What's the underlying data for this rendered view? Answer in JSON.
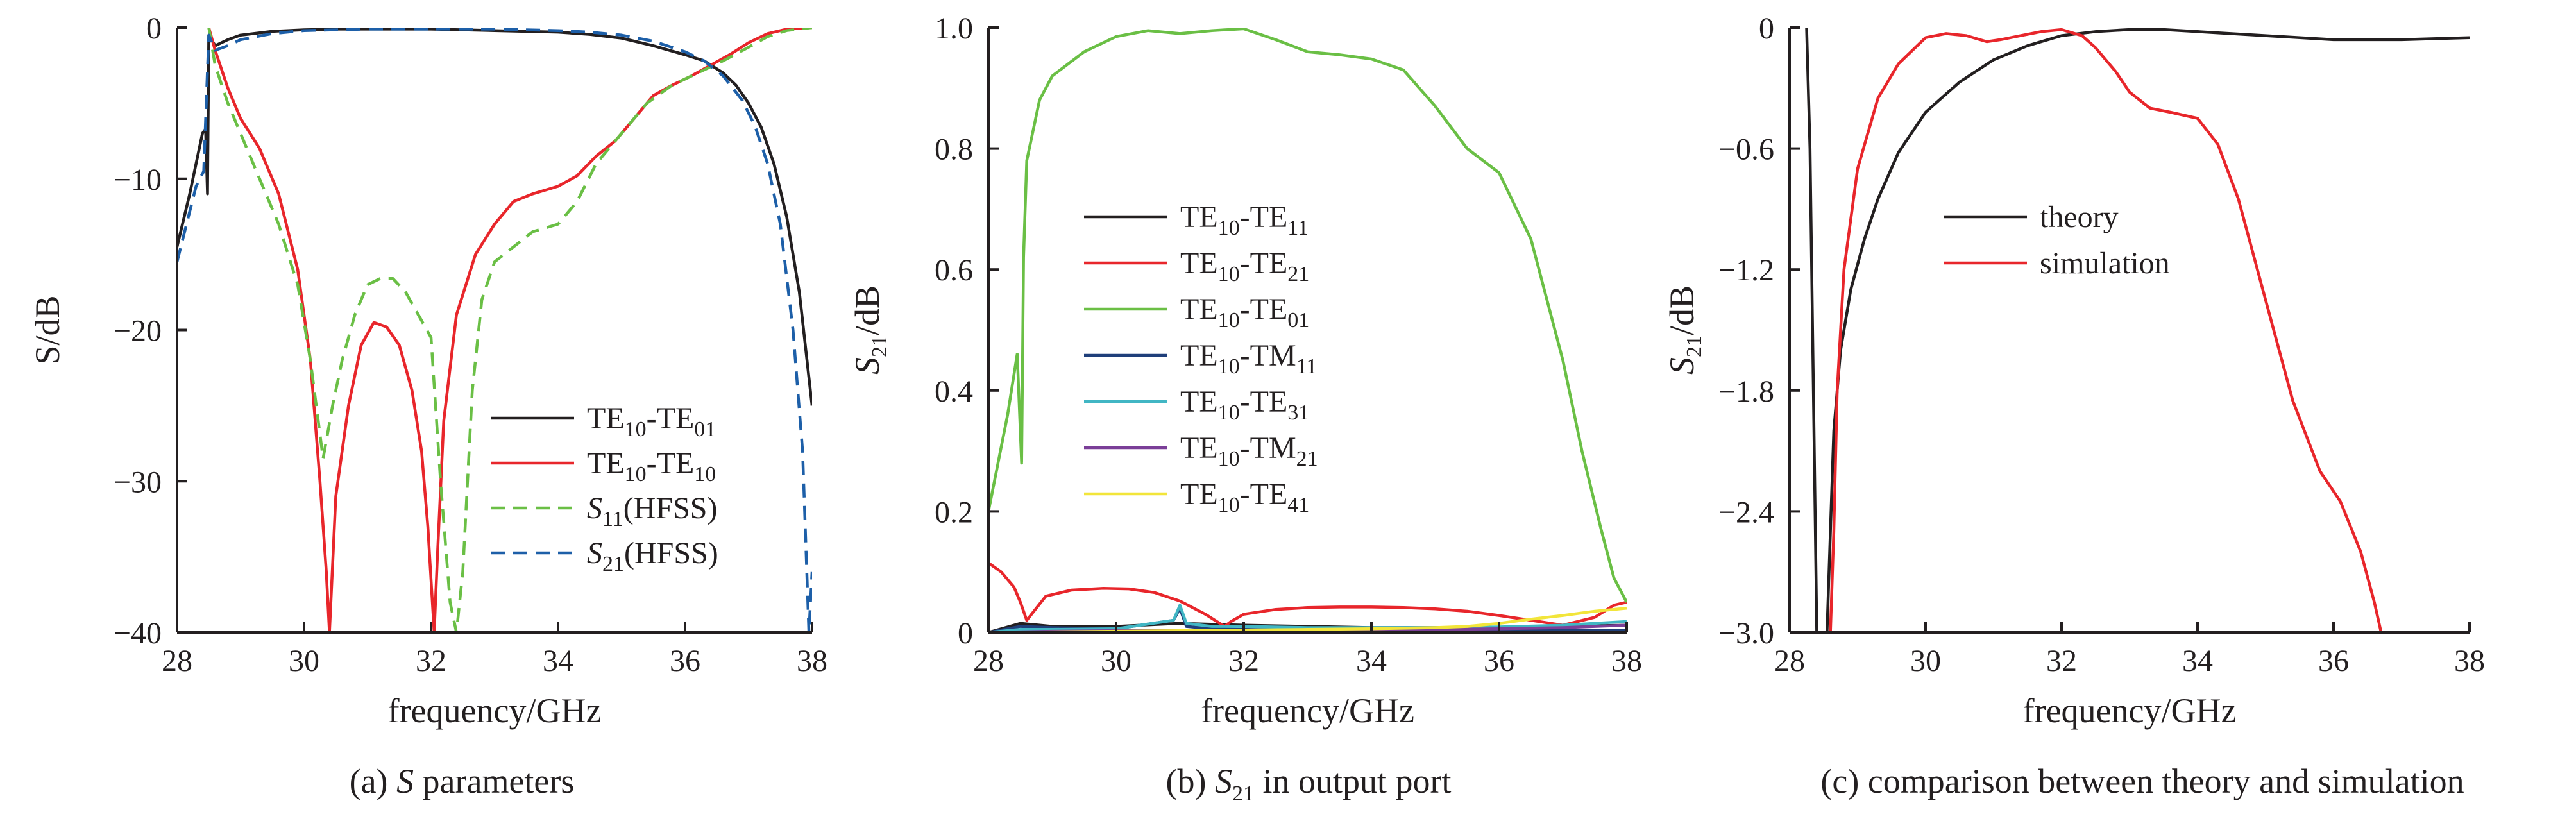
{
  "chart_data": [
    {
      "type": "line",
      "caption": "(a) S parameters",
      "caption_parts": {
        "prefix": "(a) ",
        "italic": "S",
        "suffix": " parameters"
      },
      "xlabel": "frequency/GHz",
      "ylabel": "S/dB",
      "xlim": [
        28,
        38
      ],
      "ylim": [
        -40,
        0
      ],
      "xticks": [
        28,
        30,
        32,
        34,
        36,
        38
      ],
      "yticks": [
        0,
        -10,
        -20,
        -30,
        -40
      ],
      "ytick_labels": [
        "0",
        "−10",
        "−20",
        "−30",
        "−40"
      ],
      "grid": false,
      "legend_position": "bottom-right",
      "series": [
        {
          "name": "TE10-TE01",
          "label": {
            "base": "TE",
            "sub": "10",
            "mid": "-TE",
            "sub2": "01"
          },
          "color": "#231f20",
          "style": "solid",
          "x": [
            28.0,
            28.2,
            28.4,
            28.45,
            28.48,
            28.5,
            28.6,
            28.8,
            29.0,
            29.5,
            30.0,
            30.5,
            31.0,
            32.0,
            33.0,
            34.0,
            34.5,
            35.0,
            35.5,
            36.0,
            36.3,
            36.6,
            36.8,
            37.0,
            37.2,
            37.4,
            37.6,
            37.8,
            38.0
          ],
          "y": [
            -14.5,
            -11,
            -7,
            -6.7,
            -11,
            -0.5,
            -1.2,
            -0.8,
            -0.5,
            -0.25,
            -0.15,
            -0.1,
            -0.1,
            -0.1,
            -0.2,
            -0.3,
            -0.45,
            -0.7,
            -1.2,
            -1.8,
            -2.2,
            -3.0,
            -3.8,
            -5.0,
            -6.6,
            -9.0,
            -12.5,
            -17.5,
            -25.0
          ]
        },
        {
          "name": "TE10-TE10",
          "label": {
            "base": "TE",
            "sub": "10",
            "mid": "-TE",
            "sub2": "10"
          },
          "color": "#e8262b",
          "style": "solid",
          "x": [
            28.5,
            28.6,
            28.8,
            29.0,
            29.3,
            29.6,
            29.9,
            30.1,
            30.25,
            30.35,
            30.4,
            30.5,
            30.7,
            30.9,
            31.1,
            31.3,
            31.5,
            31.7,
            31.85,
            31.95,
            32.05,
            32.1,
            32.2,
            32.4,
            32.7,
            33.0,
            33.3,
            33.6,
            34.0,
            34.3,
            34.6,
            34.9,
            35.2,
            35.5,
            35.8,
            36.1,
            36.4,
            36.7,
            37.0,
            37.3,
            37.6,
            38.0
          ],
          "y": [
            0,
            -1.5,
            -4,
            -6,
            -8,
            -11,
            -16,
            -22,
            -30,
            -36,
            -40,
            -31,
            -25,
            -21,
            -19.5,
            -19.8,
            -21,
            -24,
            -28,
            -33,
            -40,
            -35,
            -26,
            -19,
            -15,
            -13,
            -11.5,
            -11,
            -10.5,
            -9.8,
            -8.5,
            -7.5,
            -6,
            -4.5,
            -3.8,
            -3.2,
            -2.5,
            -1.8,
            -1.0,
            -0.4,
            -0.1,
            0
          ]
        },
        {
          "name": "S11(HFSS)",
          "label": {
            "italic": "S",
            "sub": "11",
            "rest": "(HFSS)"
          },
          "color": "#6abf45",
          "style": "dashed",
          "x": [
            28.5,
            28.6,
            28.8,
            29.0,
            29.3,
            29.6,
            29.9,
            30.1,
            30.3,
            30.45,
            30.6,
            30.8,
            31.0,
            31.2,
            31.4,
            31.6,
            31.8,
            32.0,
            32.15,
            32.3,
            32.4,
            32.5,
            32.65,
            32.8,
            33.0,
            33.3,
            33.6,
            34.0,
            34.3,
            34.6,
            35.0,
            35.4,
            35.8,
            36.2,
            36.6,
            37.0,
            37.3,
            37.6,
            38.0
          ],
          "y": [
            0,
            -2.5,
            -5,
            -7,
            -10,
            -13,
            -17,
            -22,
            -28.5,
            -25,
            -22,
            -19,
            -17,
            -16.6,
            -16.6,
            -17.5,
            -19,
            -20.5,
            -30,
            -38,
            -40,
            -36,
            -24,
            -18,
            -15.5,
            -14.5,
            -13.5,
            -13,
            -11.5,
            -9,
            -7,
            -5,
            -3.8,
            -3.0,
            -2.2,
            -1.3,
            -0.6,
            -0.2,
            0
          ]
        },
        {
          "name": "S21(HFSS)",
          "label": {
            "italic": "S",
            "sub": "21",
            "rest": "(HFSS)"
          },
          "color": "#1d5fa8",
          "style": "dashed",
          "x": [
            28.0,
            28.15,
            28.3,
            28.42,
            28.5,
            28.6,
            28.8,
            29.0,
            29.5,
            30.0,
            31.0,
            32.0,
            33.0,
            34.0,
            34.5,
            35.0,
            35.5,
            36.0,
            36.3,
            36.6,
            36.9,
            37.1,
            37.3,
            37.5,
            37.7,
            37.85,
            37.95,
            38.0
          ],
          "y": [
            -15.5,
            -13,
            -10.5,
            -9.5,
            -0.5,
            -1.5,
            -1.2,
            -0.8,
            -0.4,
            -0.2,
            -0.1,
            -0.1,
            -0.1,
            -0.2,
            -0.3,
            -0.5,
            -0.9,
            -1.6,
            -2.2,
            -3.2,
            -4.8,
            -6.5,
            -9,
            -13,
            -20,
            -28,
            -40,
            -36
          ]
        }
      ]
    },
    {
      "type": "line",
      "caption": "(b) S21 in output port",
      "caption_parts": {
        "prefix": "(b) ",
        "italic": "S",
        "sub": "21",
        "suffix": " in output port"
      },
      "xlabel": "frequency/GHz",
      "ylabel": "S21/dB",
      "xlim": [
        28,
        38
      ],
      "ylim": [
        0,
        1.0
      ],
      "xticks": [
        28,
        30,
        32,
        34,
        36,
        38
      ],
      "yticks": [
        0,
        0.2,
        0.4,
        0.6,
        0.8,
        1.0
      ],
      "ytick_labels": [
        "0",
        "0.2",
        "0.4",
        "0.6",
        "0.8",
        "1.0"
      ],
      "grid": false,
      "legend_position": "center-left",
      "series": [
        {
          "name": "TE10-TE11",
          "label": {
            "base": "TE",
            "sub": "10",
            "mid": "-TE",
            "sub2": "11"
          },
          "color": "#231f20",
          "style": "solid",
          "x": [
            28.0,
            28.5,
            29.0,
            30.0,
            31.0,
            32.0,
            33.0,
            34.0,
            35.0,
            36.0,
            37.0,
            38.0
          ],
          "y": [
            0,
            0.015,
            0.01,
            0.01,
            0.015,
            0.012,
            0.01,
            0.008,
            0.008,
            0.008,
            0.01,
            0.012
          ]
        },
        {
          "name": "TE10-TE21",
          "label": {
            "base": "TE",
            "sub": "10",
            "mid": "-TE",
            "sub2": "21"
          },
          "color": "#e8262b",
          "style": "solid",
          "x": [
            28.0,
            28.2,
            28.4,
            28.5,
            28.6,
            28.9,
            29.3,
            29.8,
            30.2,
            30.6,
            31.0,
            31.4,
            31.7,
            31.8,
            32.0,
            32.5,
            33.0,
            33.5,
            34.0,
            34.5,
            35.0,
            35.5,
            36.0,
            36.5,
            37.0,
            37.5,
            37.8,
            38.0
          ],
          "y": [
            0.115,
            0.1,
            0.075,
            0.05,
            0.02,
            0.06,
            0.07,
            0.073,
            0.072,
            0.066,
            0.052,
            0.03,
            0.01,
            0.018,
            0.03,
            0.038,
            0.041,
            0.042,
            0.042,
            0.041,
            0.039,
            0.035,
            0.028,
            0.02,
            0.012,
            0.025,
            0.045,
            0.05
          ]
        },
        {
          "name": "TE10-TE01",
          "label": {
            "base": "TE",
            "sub": "10",
            "mid": "-TE",
            "sub2": "01"
          },
          "color": "#6abf45",
          "style": "solid",
          "x": [
            28.0,
            28.15,
            28.3,
            28.45,
            28.52,
            28.55,
            28.6,
            28.8,
            29.0,
            29.5,
            30.0,
            30.5,
            31.0,
            31.5,
            32.0,
            32.5,
            33.0,
            33.5,
            34.0,
            34.5,
            35.0,
            35.5,
            36.0,
            36.5,
            37.0,
            37.3,
            37.6,
            37.8,
            38.0
          ],
          "y": [
            0.2,
            0.28,
            0.36,
            0.46,
            0.28,
            0.62,
            0.78,
            0.88,
            0.92,
            0.96,
            0.985,
            0.995,
            0.99,
            0.995,
            0.998,
            0.98,
            0.96,
            0.955,
            0.948,
            0.93,
            0.87,
            0.8,
            0.76,
            0.65,
            0.45,
            0.3,
            0.17,
            0.09,
            0.05
          ]
        },
        {
          "name": "TE10-TM11",
          "label": {
            "base": "TE",
            "sub": "10",
            "mid": "-TM",
            "sub2": "11"
          },
          "color": "#1f3f7a",
          "style": "solid",
          "x": [
            28.0,
            28.5,
            29.0,
            30.0,
            30.9,
            31.0,
            31.1,
            31.5,
            32.0,
            33.0,
            34.0,
            35.0,
            36.0,
            37.0,
            38.0
          ],
          "y": [
            0,
            0.01,
            0.008,
            0.006,
            0.02,
            0.04,
            0.01,
            0.006,
            0.005,
            0.004,
            0.004,
            0.004,
            0.004,
            0.004,
            0.004
          ]
        },
        {
          "name": "TE10-TE31",
          "label": {
            "base": "TE",
            "sub": "10",
            "mid": "-TE",
            "sub2": "31"
          },
          "color": "#41b6c4",
          "style": "solid",
          "x": [
            28.0,
            28.5,
            29.0,
            30.0,
            30.9,
            31.0,
            31.1,
            31.5,
            32.0,
            33.0,
            34.0,
            35.0,
            36.0,
            37.0,
            38.0
          ],
          "y": [
            0,
            0.005,
            0.005,
            0.006,
            0.02,
            0.045,
            0.015,
            0.01,
            0.01,
            0.008,
            0.008,
            0.008,
            0.009,
            0.012,
            0.018
          ]
        },
        {
          "name": "TE10-TM21",
          "label": {
            "base": "TE",
            "sub": "10",
            "mid": "-TM",
            "sub2": "21"
          },
          "color": "#7b3f98",
          "style": "solid",
          "x": [
            28.0,
            29.0,
            30.0,
            31.0,
            32.0,
            33.0,
            34.0,
            35.0,
            36.0,
            37.0,
            38.0
          ],
          "y": [
            0,
            0.002,
            0.003,
            0.004,
            0.004,
            0.004,
            0.005,
            0.005,
            0.006,
            0.008,
            0.012
          ]
        },
        {
          "name": "TE10-TE41",
          "label": {
            "base": "TE",
            "sub": "10",
            "mid": "-TE",
            "sub2": "41"
          },
          "color": "#f2e53a",
          "style": "solid",
          "x": [
            28.0,
            29.0,
            30.0,
            31.0,
            32.0,
            33.0,
            34.0,
            35.0,
            35.5,
            36.0,
            36.5,
            37.0,
            37.5,
            38.0
          ],
          "y": [
            0,
            0.001,
            0.002,
            0.003,
            0.004,
            0.005,
            0.006,
            0.008,
            0.01,
            0.015,
            0.022,
            0.028,
            0.035,
            0.04
          ]
        }
      ]
    },
    {
      "type": "line",
      "caption": "(c) comparison between theory and simulation",
      "caption_parts": {
        "prefix": "(c) comparison between theory and simulation"
      },
      "xlabel": "frequency/GHz",
      "ylabel": "S21/dB",
      "xlim": [
        28,
        38
      ],
      "ylim": [
        -3.0,
        0
      ],
      "xticks": [
        28,
        30,
        32,
        34,
        36,
        38
      ],
      "yticks": [
        0,
        -0.6,
        -1.2,
        -1.8,
        -2.4,
        -3.0
      ],
      "ytick_labels": [
        "0",
        "−0.6",
        "−1.2",
        "−1.8",
        "−2.4",
        "−3.0"
      ],
      "grid": false,
      "legend_position": "upper-left",
      "series": [
        {
          "name": "theory",
          "label": {
            "rest": "theory"
          },
          "color": "#231f20",
          "style": "solid",
          "x": [
            28.25,
            28.3,
            28.35,
            28.4,
            28.45,
            28.5,
            28.55,
            28.6,
            28.65,
            28.75,
            28.9,
            29.1,
            29.3,
            29.6,
            30.0,
            30.5,
            31.0,
            31.5,
            32.0,
            32.5,
            33.0,
            33.5,
            34.0,
            35.0,
            36.0,
            37.0,
            38.0
          ],
          "y": [
            0,
            -0.6,
            -1.8,
            -3.0,
            -3.0,
            -3.0,
            -3.0,
            -2.5,
            -2.0,
            -1.6,
            -1.3,
            -1.05,
            -0.85,
            -0.62,
            -0.42,
            -0.27,
            -0.16,
            -0.09,
            -0.04,
            -0.02,
            -0.01,
            -0.01,
            -0.02,
            -0.04,
            -0.06,
            -0.06,
            -0.05
          ]
        },
        {
          "name": "simulation",
          "label": {
            "rest": "simulation"
          },
          "color": "#e8262b",
          "style": "solid",
          "x": [
            28.6,
            28.65,
            28.7,
            28.8,
            29.0,
            29.3,
            29.6,
            30.0,
            30.3,
            30.6,
            30.9,
            31.1,
            31.4,
            31.7,
            32.0,
            32.3,
            32.5,
            32.8,
            33.0,
            33.3,
            33.6,
            34.0,
            34.3,
            34.6,
            35.0,
            35.4,
            35.8,
            36.1,
            36.4,
            36.6,
            36.7
          ],
          "y": [
            -3.0,
            -2.5,
            -1.8,
            -1.2,
            -0.7,
            -0.35,
            -0.18,
            -0.05,
            -0.03,
            -0.04,
            -0.07,
            -0.06,
            -0.04,
            -0.02,
            -0.01,
            -0.04,
            -0.1,
            -0.22,
            -0.32,
            -0.4,
            -0.42,
            -0.45,
            -0.58,
            -0.85,
            -1.35,
            -1.85,
            -2.2,
            -2.35,
            -2.6,
            -2.85,
            -3.0
          ]
        }
      ]
    }
  ]
}
